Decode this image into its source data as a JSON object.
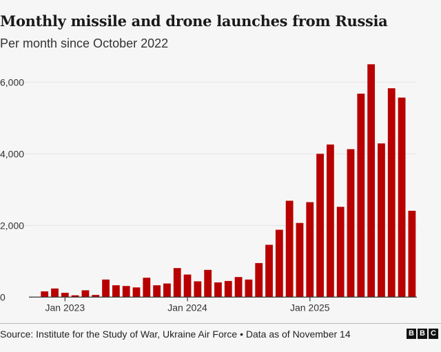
{
  "title": "Monthly missile and drone launches from Russia",
  "subtitle": "Per month since October 2022",
  "source": "Source: Institute for the Study of War, Ukraine Air Force • Data as of November 14",
  "logo_text": "BBC",
  "chart_data": {
    "type": "bar",
    "title": "Monthly missile and drone launches from Russia",
    "subtitle": "Per month since October 2022",
    "color": "#b80000",
    "categories": [
      "Nov 2022",
      "Dec 2022",
      "Jan 2023",
      "Feb 2023",
      "Mar 2023",
      "Apr 2023",
      "May 2023",
      "Jun 2023",
      "Jul 2023",
      "Aug 2023",
      "Sep 2023",
      "Oct 2023",
      "Nov 2023",
      "Dec 2023",
      "Jan 2024",
      "Feb 2024",
      "Mar 2024",
      "Apr 2024",
      "May 2024",
      "Jun 2024",
      "Jul 2024",
      "Aug 2024",
      "Sep 2024",
      "Oct 2024",
      "Nov 2024",
      "Dec 2024",
      "Jan 2025",
      "Feb 2025",
      "Mar 2025",
      "Apr 2025",
      "May 2025",
      "Jun 2025",
      "Jul 2025",
      "Aug 2025",
      "Sep 2025",
      "Oct 2025",
      "Nov 2025"
    ],
    "values": [
      160,
      240,
      120,
      50,
      190,
      60,
      490,
      330,
      310,
      270,
      540,
      330,
      380,
      810,
      630,
      440,
      760,
      410,
      450,
      560,
      490,
      950,
      1460,
      1880,
      2690,
      2070,
      2650,
      4000,
      4260,
      2520,
      4130,
      5680,
      6500,
      4290,
      5830,
      5570,
      2410
    ],
    "ylim": [
      0,
      6500
    ],
    "yticks": [
      0,
      2000,
      4000,
      6000
    ],
    "ytick_labels": [
      "0",
      "2,000",
      "4,000",
      "6,000"
    ],
    "xtick_labels": [
      {
        "category": "Jan 2023",
        "label": "Jan 2023"
      },
      {
        "category": "Jan 2024",
        "label": "Jan 2024"
      },
      {
        "category": "Jan 2025",
        "label": "Jan 2025"
      }
    ],
    "grid": true,
    "xlabel": "",
    "ylabel": ""
  }
}
